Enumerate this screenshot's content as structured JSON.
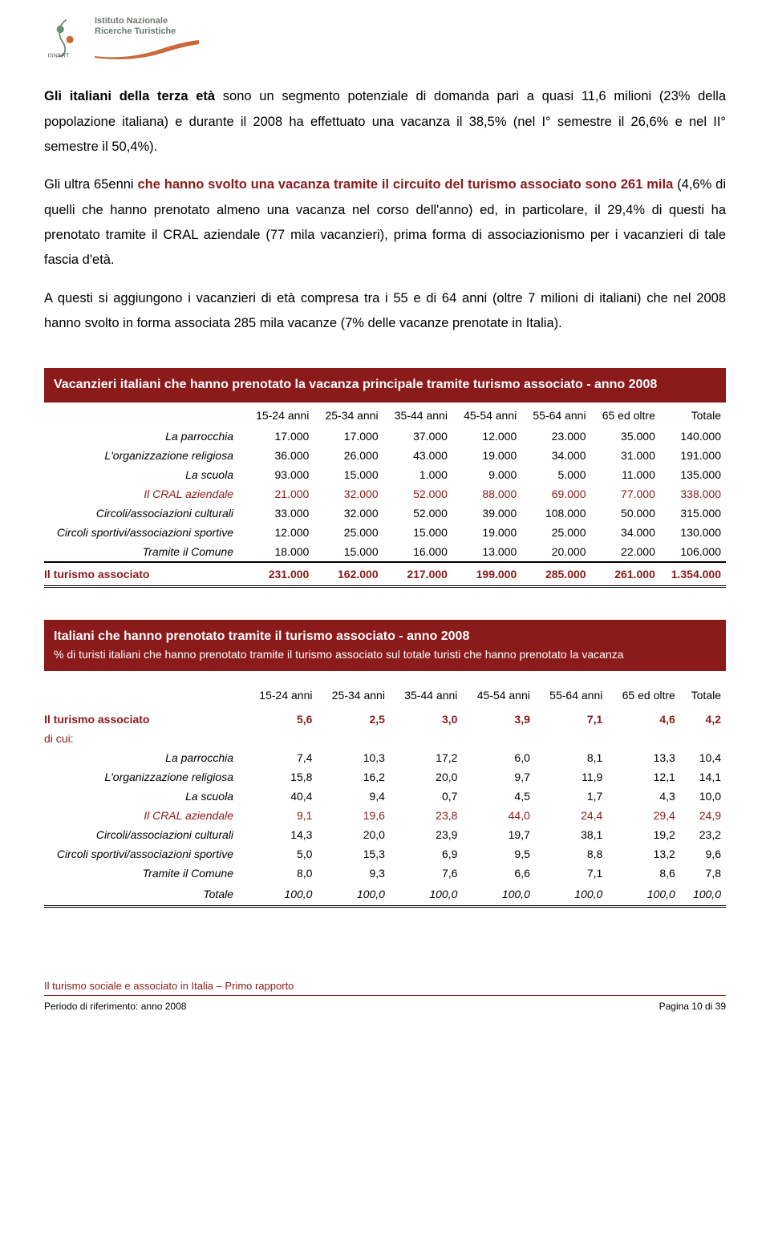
{
  "logo": {
    "org_line1": "Istituto Nazionale",
    "org_line2": "Ricerche Turistiche",
    "acronym": "ISNART"
  },
  "paragraphs": {
    "p1_a": "Gli italiani della terza età",
    "p1_b": " sono un segmento potenziale di domanda pari a quasi 11,6 milioni (23% della popolazione italiana) e durante il 2008 ha effettuato una vacanza il 38,5% (nel I° semestre il 26,6% e nel II° semestre il 50,4%).",
    "p2_a": "Gli ultra 65enni ",
    "p2_b": "che hanno svolto una vacanza tramite il circuito del turismo associato sono 261 mila",
    "p2_c": " (4,6% di quelli che hanno prenotato almeno una vacanza nel corso dell'anno) ed, in particolare, il 29,4% di questi ha prenotato tramite il CRAL aziendale (77 mila vacanzieri), prima forma di associazionismo per i vacanzieri di tale fascia d'età.",
    "p3": "A questi si aggiungono i vacanzieri di età compresa tra i 55 e di 64 anni (oltre 7 milioni di italiani) che nel 2008 hanno svolto in forma associata 285 mila vacanze (7% delle vacanze prenotate in Italia)."
  },
  "table1": {
    "title": "Vacanzieri italiani che hanno prenotato la vacanza principale tramite turismo associato - anno 2008",
    "columns": [
      "15-24 anni",
      "25-34 anni",
      "35-44 anni",
      "45-54 anni",
      "55-64 anni",
      "65 ed oltre",
      "Totale"
    ],
    "rows": [
      {
        "label": "La parrocchia",
        "v": [
          "17.000",
          "17.000",
          "37.000",
          "12.000",
          "23.000",
          "35.000",
          "140.000"
        ],
        "red": false
      },
      {
        "label": "L'organizzazione religiosa",
        "v": [
          "36.000",
          "26.000",
          "43.000",
          "19.000",
          "34.000",
          "31.000",
          "191.000"
        ],
        "red": false
      },
      {
        "label": "La scuola",
        "v": [
          "93.000",
          "15.000",
          "1.000",
          "9.000",
          "5.000",
          "11.000",
          "135.000"
        ],
        "red": false
      },
      {
        "label": "Il CRAL aziendale",
        "v": [
          "21.000",
          "32.000",
          "52.000",
          "88.000",
          "69.000",
          "77.000",
          "338.000"
        ],
        "red": true
      },
      {
        "label": "Circoli/associazioni culturali",
        "v": [
          "33.000",
          "32.000",
          "52.000",
          "39.000",
          "108.000",
          "50.000",
          "315.000"
        ],
        "red": false
      },
      {
        "label": "Circoli sportivi/associazioni sportive",
        "v": [
          "12.000",
          "25.000",
          "15.000",
          "19.000",
          "25.000",
          "34.000",
          "130.000"
        ],
        "red": false
      },
      {
        "label": "Tramite il Comune",
        "v": [
          "18.000",
          "15.000",
          "16.000",
          "13.000",
          "20.000",
          "22.000",
          "106.000"
        ],
        "red": false
      }
    ],
    "total": {
      "label": "Il turismo associato",
      "v": [
        "231.000",
        "162.000",
        "217.000",
        "199.000",
        "285.000",
        "261.000",
        "1.354.000"
      ]
    }
  },
  "table2": {
    "title": "Italiani che hanno prenotato tramite il turismo associato - anno 2008",
    "subtitle": "% di turisti italiani che hanno prenotato tramite il turismo associato sul totale turisti che hanno prenotato la vacanza",
    "columns": [
      "15-24 anni",
      "25-34 anni",
      "35-44 anni",
      "45-54 anni",
      "55-64 anni",
      "65 ed oltre",
      "Totale"
    ],
    "main_row": {
      "label": "Il turismo associato",
      "v": [
        "5,6",
        "2,5",
        "3,0",
        "3,9",
        "7,1",
        "4,6",
        "4,2"
      ]
    },
    "dicui": "di cui:",
    "rows": [
      {
        "label": "La parrocchia",
        "v": [
          "7,4",
          "10,3",
          "17,2",
          "6,0",
          "8,1",
          "13,3",
          "10,4"
        ],
        "red": false
      },
      {
        "label": "L'organizzazione religiosa",
        "v": [
          "15,8",
          "16,2",
          "20,0",
          "9,7",
          "11,9",
          "12,1",
          "14,1"
        ],
        "red": false
      },
      {
        "label": "La scuola",
        "v": [
          "40,4",
          "9,4",
          "0,7",
          "4,5",
          "1,7",
          "4,3",
          "10,0"
        ],
        "red": false
      },
      {
        "label": "Il CRAL aziendale",
        "v": [
          "9,1",
          "19,6",
          "23,8",
          "44,0",
          "24,4",
          "29,4",
          "24,9"
        ],
        "red": true
      },
      {
        "label": "Circoli/associazioni culturali",
        "v": [
          "14,3",
          "20,0",
          "23,9",
          "19,7",
          "38,1",
          "19,2",
          "23,2"
        ],
        "red": false
      },
      {
        "label": "Circoli sportivi/associazioni sportive",
        "v": [
          "5,0",
          "15,3",
          "6,9",
          "9,5",
          "8,8",
          "13,2",
          "9,6"
        ],
        "red": false
      },
      {
        "label": "Tramite il Comune",
        "v": [
          "8,0",
          "9,3",
          "7,6",
          "6,6",
          "7,1",
          "8,6",
          "7,8"
        ],
        "red": false
      }
    ],
    "total": {
      "label": "Totale",
      "v": [
        "100,0",
        "100,0",
        "100,0",
        "100,0",
        "100,0",
        "100,0",
        "100,0"
      ]
    }
  },
  "footer": {
    "report_title": "Il turismo sociale e associato in Italia – Primo rapporto",
    "period": "Periodo di riferimento: anno 2008",
    "page": "Pagina 10 di 39"
  },
  "colors": {
    "brand_red": "#8b1a1a",
    "logo_green": "#5a7a5f",
    "logo_orange": "#c96a3a"
  }
}
